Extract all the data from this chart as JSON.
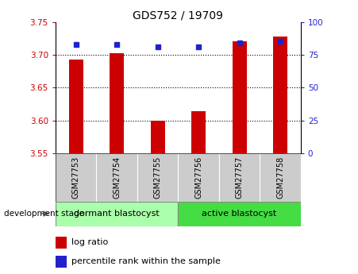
{
  "title": "GDS752 / 19709",
  "categories": [
    "GSM27753",
    "GSM27754",
    "GSM27755",
    "GSM27756",
    "GSM27757",
    "GSM27758"
  ],
  "log_ratios": [
    3.693,
    3.703,
    3.6,
    3.614,
    3.72,
    3.728
  ],
  "percentile_ranks": [
    83,
    83,
    81,
    81,
    84,
    85
  ],
  "ylim_left": [
    3.55,
    3.75
  ],
  "ylim_right": [
    0,
    100
  ],
  "yticks_left": [
    3.55,
    3.6,
    3.65,
    3.7,
    3.75
  ],
  "yticks_right": [
    0,
    25,
    50,
    75,
    100
  ],
  "bar_color": "#cc0000",
  "dot_color": "#2222cc",
  "tick_area_color": "#cccccc",
  "group1_label": "dormant blastocyst",
  "group2_label": "active blastocyst",
  "group1_color": "#aaffaa",
  "group2_color": "#44dd44",
  "label_log_ratio": "log ratio",
  "label_percentile": "percentile rank within the sample",
  "annotation_label": "development stage",
  "left_axis_color": "#cc0000",
  "right_axis_color": "#2222cc",
  "bar_width": 0.35
}
